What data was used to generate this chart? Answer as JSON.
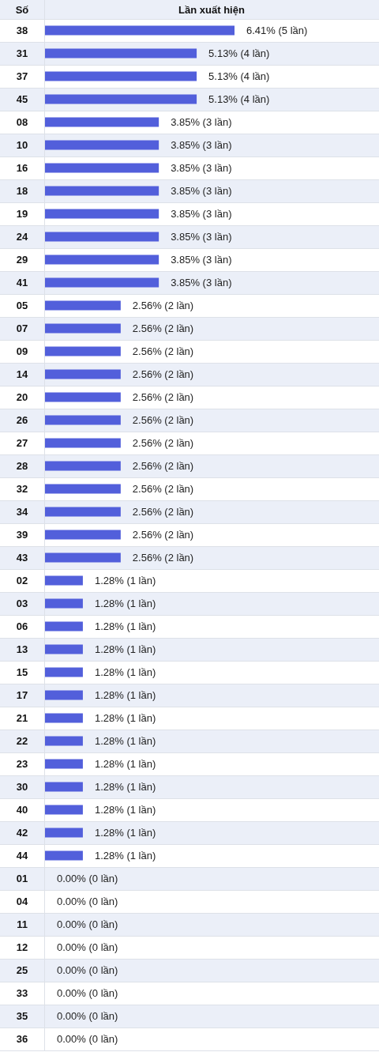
{
  "chart_data": {
    "type": "bar",
    "orientation": "horizontal",
    "xlabel": "Lần xuất hiện",
    "ylabel": "Số",
    "color": "#525fdb",
    "categories": [
      "38",
      "31",
      "37",
      "45",
      "08",
      "10",
      "16",
      "18",
      "19",
      "24",
      "29",
      "41",
      "05",
      "07",
      "09",
      "14",
      "20",
      "26",
      "27",
      "28",
      "32",
      "34",
      "39",
      "43",
      "02",
      "03",
      "06",
      "13",
      "15",
      "17",
      "21",
      "22",
      "23",
      "30",
      "40",
      "42",
      "44",
      "01",
      "04",
      "11",
      "12",
      "25",
      "33",
      "35",
      "36"
    ],
    "values": [
      6.41,
      5.13,
      5.13,
      5.13,
      3.85,
      3.85,
      3.85,
      3.85,
      3.85,
      3.85,
      3.85,
      3.85,
      2.56,
      2.56,
      2.56,
      2.56,
      2.56,
      2.56,
      2.56,
      2.56,
      2.56,
      2.56,
      2.56,
      2.56,
      1.28,
      1.28,
      1.28,
      1.28,
      1.28,
      1.28,
      1.28,
      1.28,
      1.28,
      1.28,
      1.28,
      1.28,
      1.28,
      0,
      0,
      0,
      0,
      0,
      0,
      0,
      0
    ],
    "value_labels": [
      "6.41% (5 lần)",
      "5.13% (4 lần)",
      "5.13% (4 lần)",
      "5.13% (4 lần)",
      "3.85% (3 lần)",
      "3.85% (3 lần)",
      "3.85% (3 lần)",
      "3.85% (3 lần)",
      "3.85% (3 lần)",
      "3.85% (3 lần)",
      "3.85% (3 lần)",
      "3.85% (3 lần)",
      "2.56% (2 lần)",
      "2.56% (2 lần)",
      "2.56% (2 lần)",
      "2.56% (2 lần)",
      "2.56% (2 lần)",
      "2.56% (2 lần)",
      "2.56% (2 lần)",
      "2.56% (2 lần)",
      "2.56% (2 lần)",
      "2.56% (2 lần)",
      "2.56% (2 lần)",
      "2.56% (2 lần)",
      "1.28% (1 lần)",
      "1.28% (1 lần)",
      "1.28% (1 lần)",
      "1.28% (1 lần)",
      "1.28% (1 lần)",
      "1.28% (1 lần)",
      "1.28% (1 lần)",
      "1.28% (1 lần)",
      "1.28% (1 lần)",
      "1.28% (1 lần)",
      "1.28% (1 lần)",
      "1.28% (1 lần)",
      "1.28% (1 lần)",
      "0.00% (0 lần)",
      "0.00% (0 lần)",
      "0.00% (0 lần)",
      "0.00% (0 lần)",
      "0.00% (0 lần)",
      "0.00% (0 lần)",
      "0.00% (0 lần)",
      "0.00% (0 lần)"
    ]
  }
}
